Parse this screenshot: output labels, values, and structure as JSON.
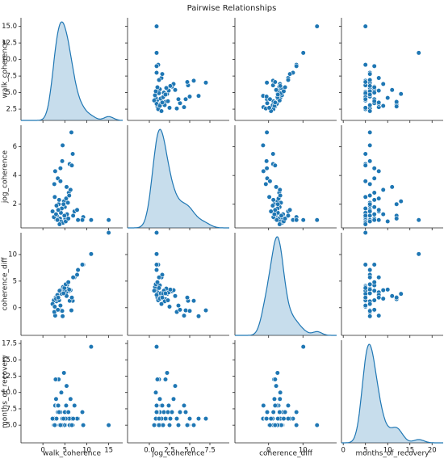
{
  "chart_data": {
    "type": "pairplot",
    "title": "Pairwise Relationships",
    "color": "#1f77b4",
    "variables": [
      {
        "name": "walk_coherence",
        "values": [
          15.0,
          11.0,
          3.2,
          4.5,
          2.8,
          6.5,
          5.1,
          4.0,
          3.6,
          9.2,
          8.0,
          7.2,
          6.8,
          5.5,
          4.8,
          3.9,
          2.6,
          5.9,
          4.2,
          3.1,
          6.1,
          5.3,
          7.8,
          4.6,
          3.4,
          2.9,
          5.7,
          4.1,
          6.3,
          3.8,
          5.0,
          4.4,
          2.5,
          3.3,
          6.0,
          4.9,
          5.4,
          2.2,
          3.7,
          4.3,
          5.2,
          6.6,
          3.0,
          4.7,
          5.8,
          2.7,
          3.5,
          4.0,
          6.9,
          9.0
        ],
        "xlim": [
          -5,
          18.2
        ],
        "ylim": [
          0.8,
          16.3
        ],
        "xticks": [
          0,
          5,
          10,
          15
        ],
        "yticks": [
          2.5,
          {
            "value": 5,
            "label": "5.0"
          },
          7.5,
          {
            "value": 10,
            "label": "10.0"
          },
          12.5,
          {
            "value": 15,
            "label": "15.0"
          }
        ]
      },
      {
        "name": "jog_coherence",
        "values": [
          0.9,
          0.9,
          1.2,
          6.1,
          4.3,
          7.0,
          1.0,
          4.5,
          2.0,
          1.1,
          0.9,
          1.5,
          5.5,
          1.3,
          2.2,
          1.0,
          3.4,
          2.8,
          0.8,
          1.9,
          4.8,
          2.4,
          1.6,
          0.7,
          3.8,
          1.0,
          2.1,
          1.4,
          3.0,
          0.6,
          1.8,
          5.0,
          1.1,
          0.9,
          2.6,
          1.2,
          3.2,
          1.5,
          2.3,
          1.7,
          0.8,
          4.7,
          1.3,
          2.0,
          1.0,
          2.5,
          1.6,
          3.6,
          1.2,
          0.9
        ],
        "xlim": [
          -2.7,
          9.9
        ],
        "ylim": [
          0.35,
          7.5
        ],
        "xticks": [
          {
            "value": 0,
            "label": "0.0"
          },
          2.5,
          {
            "value": 5,
            "label": "5.0"
          },
          7.5
        ],
        "yticks": [
          2,
          4,
          6
        ]
      },
      {
        "name": "coherence_diff",
        "values": [
          14.1,
          10.1,
          2.0,
          -1.6,
          -1.5,
          -0.5,
          4.1,
          -0.5,
          1.6,
          8.1,
          7.1,
          5.7,
          1.3,
          4.2,
          2.6,
          2.9,
          -0.8,
          3.1,
          3.4,
          1.2,
          1.3,
          2.9,
          6.2,
          3.9,
          -0.4,
          1.9,
          3.6,
          2.7,
          3.3,
          3.2,
          3.2,
          -0.6,
          1.4,
          2.4,
          3.4,
          3.7,
          2.2,
          0.7,
          1.4,
          2.6,
          4.4,
          1.9,
          1.7,
          2.7,
          4.8,
          0.2,
          1.9,
          0.4,
          5.7,
          8.1
        ],
        "xlim": [
          -9.8,
          19.8
        ],
        "ylim": [
          -5.2,
          14.1
        ],
        "xticks": [
          0,
          10
        ],
        "yticks": [
          0,
          5,
          10
        ]
      },
      {
        "name": "months_of_recovery",
        "values": [
          5,
          17,
          12,
          6,
          8,
          6,
          5,
          7,
          12,
          5,
          6,
          8,
          5,
          7,
          13,
          5,
          6,
          7,
          10,
          6,
          5,
          8,
          6,
          5,
          7,
          12,
          6,
          5,
          9,
          5,
          7,
          6,
          5,
          8,
          6,
          5,
          11,
          6,
          7,
          5,
          6,
          5,
          9,
          6,
          7,
          5,
          8,
          5,
          6,
          7
        ],
        "xlim": [
          -0.4,
          22.5
        ],
        "ylim": [
          2.3,
          18
        ],
        "xticks": [
          0,
          5,
          10,
          15,
          20
        ],
        "yticks": [
          {
            "value": 5,
            "label": "5.0"
          },
          7.5,
          {
            "value": 10,
            "label": "10.0"
          },
          12.5,
          {
            "value": 15,
            "label": "15.0"
          },
          17.5
        ]
      }
    ]
  }
}
